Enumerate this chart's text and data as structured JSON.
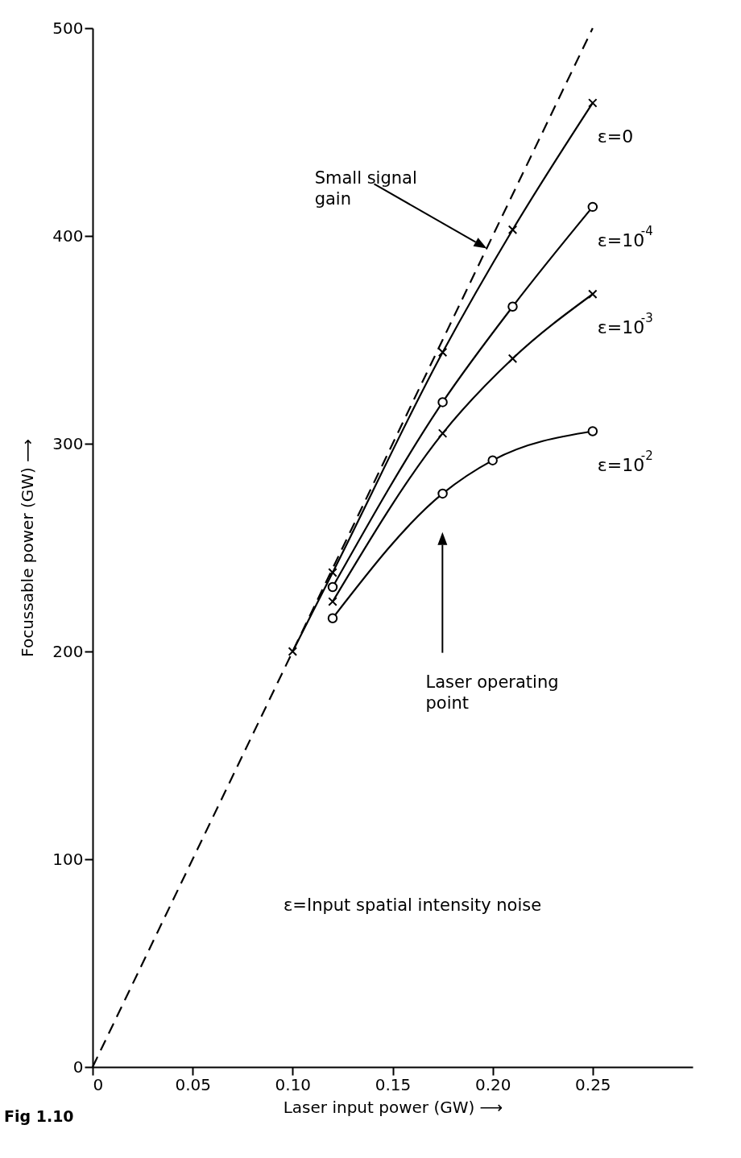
{
  "chart_data": {
    "type": "line",
    "xlabel": "Laser input power (GW) ⟶",
    "ylabel": "Focussable power (GW) ⟶",
    "xlim": [
      0,
      0.3
    ],
    "ylim": [
      0,
      500
    ],
    "xticks": [
      0,
      0.05,
      {
        "value": 0.1,
        "label": "0.10"
      },
      0.15,
      {
        "value": 0.2,
        "label": "0.20"
      },
      0.25
    ],
    "yticks": [
      0,
      100,
      200,
      300,
      400,
      500
    ],
    "grid": false,
    "series": [
      {
        "color": "#000000",
        "line_style": "dashed",
        "marker": "none",
        "x": [
          0,
          0.25
        ],
        "values": [
          0,
          500
        ]
      },
      {
        "name": "ε=0",
        "color": "#000000",
        "line_style": "solid",
        "marker": "cross",
        "x": [
          0.1,
          0.12,
          0.175,
          0.21,
          0.25
        ],
        "values": [
          200,
          238,
          344,
          403,
          464
        ]
      },
      {
        "name": "ε=10$^{-4}$",
        "color": "#000000",
        "line_style": "solid",
        "marker": "circle",
        "x": [
          0.12,
          0.175,
          0.21,
          0.25
        ],
        "values": [
          231,
          320,
          366,
          414
        ]
      },
      {
        "name": "ε=10$^{-3}$",
        "color": "#000000",
        "line_style": "solid",
        "marker": "cross",
        "x": [
          0.12,
          0.175,
          0.21,
          0.25
        ],
        "values": [
          224,
          305,
          341,
          372
        ]
      },
      {
        "name": "ε=10$^{-2}$",
        "color": "#000000",
        "line_style": "solid",
        "marker": "circle",
        "x": [
          0.12,
          0.175,
          0.2,
          0.25
        ],
        "values": [
          216,
          276,
          292,
          306
        ]
      }
    ],
    "annotations": [
      "Small signal gain",
      "Laser operating point",
      "ε=Input spatial intensity noise",
      "Fig 1.10"
    ]
  }
}
